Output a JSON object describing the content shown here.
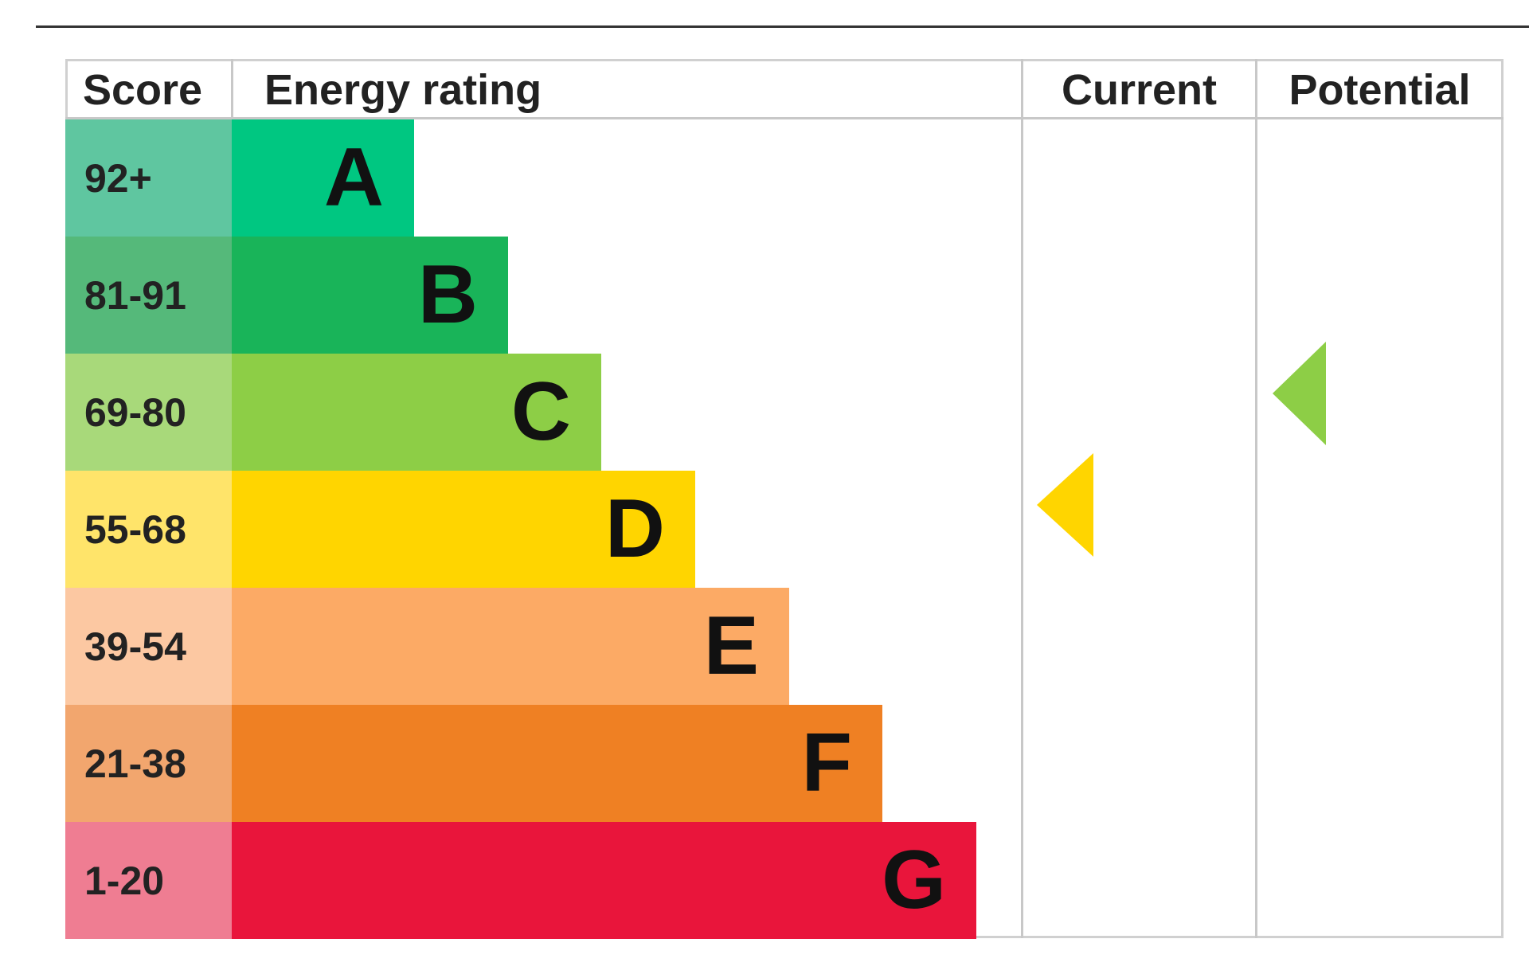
{
  "headers": [
    "Score",
    "Energy rating",
    "Current",
    "Potential"
  ],
  "rows": [
    {
      "score": "92+",
      "rating": "A"
    },
    {
      "score": "81-91",
      "rating": "B"
    },
    {
      "score": "69-80",
      "rating": "C"
    },
    {
      "score": "55-68",
      "rating": "D"
    },
    {
      "score": "39-54",
      "rating": "E"
    },
    {
      "score": "21-38",
      "rating": "F"
    },
    {
      "score": "1-20",
      "rating": "G"
    }
  ]
}
